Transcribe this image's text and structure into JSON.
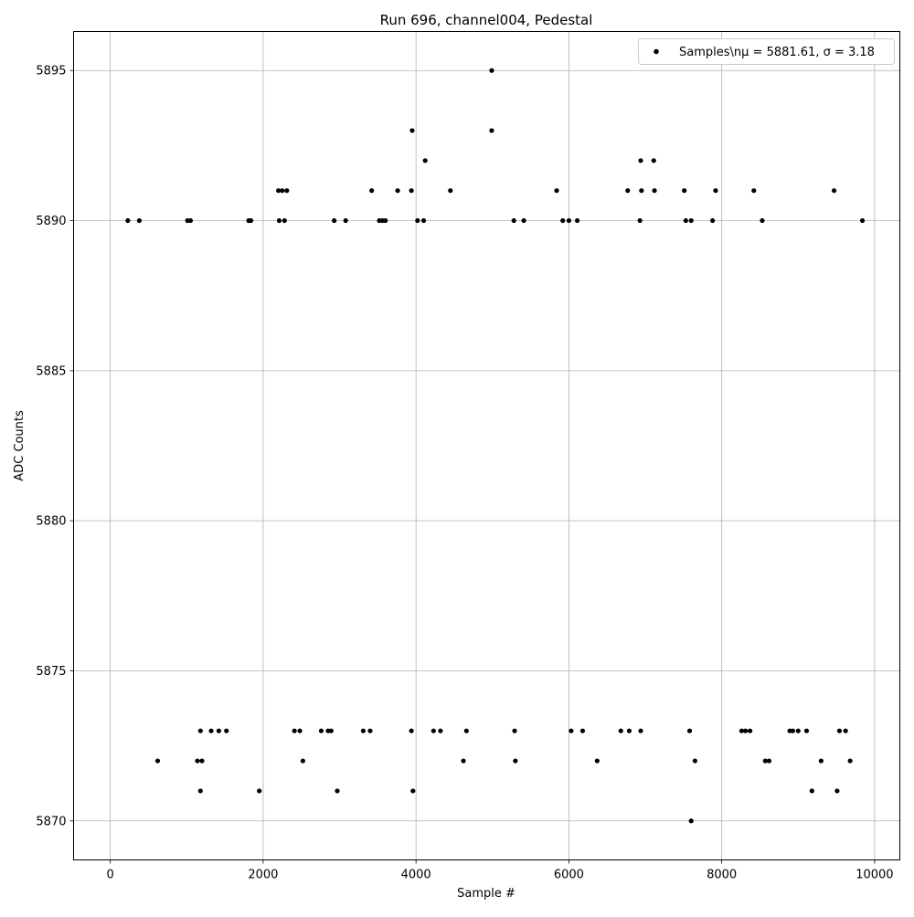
{
  "chart_data": {
    "type": "scatter",
    "title": "Run 696, channel004, Pedestal",
    "xlabel": "Sample #",
    "ylabel": "ADC Counts",
    "xlim": [
      -480,
      10330
    ],
    "ylim": [
      5868.7,
      5896.3
    ],
    "xticks": [
      0,
      2000,
      4000,
      6000,
      8000,
      10000
    ],
    "xtick_labels": [
      "0",
      "2000",
      "4000",
      "6000",
      "8000",
      "10000"
    ],
    "yticks": [
      5870,
      5875,
      5880,
      5885,
      5890,
      5895
    ],
    "ytick_labels": [
      "5870",
      "5875",
      "5880",
      "5885",
      "5890",
      "5895"
    ],
    "grid": true,
    "legend_position": "top-right",
    "legend_label": "Samples\\nμ = 5881.61, σ = 3.18",
    "marker_color": "#000000",
    "sample_range": [
      0,
      9850
    ],
    "series": [
      {
        "name": "Samples\\nμ = 5881.61, σ = 3.18",
        "points": [
          [
            4990,
            5895
          ],
          [
            3950,
            5893
          ],
          [
            4990,
            5893
          ],
          [
            4120,
            5892
          ],
          [
            6940,
            5892
          ],
          [
            7110,
            5892
          ],
          [
            2200,
            5891
          ],
          [
            2250,
            5891
          ],
          [
            2310,
            5891
          ],
          [
            3420,
            5891
          ],
          [
            3760,
            5891
          ],
          [
            3940,
            5891
          ],
          [
            4450,
            5891
          ],
          [
            5840,
            5891
          ],
          [
            6770,
            5891
          ],
          [
            6950,
            5891
          ],
          [
            7120,
            5891
          ],
          [
            7510,
            5891
          ],
          [
            7920,
            5891
          ],
          [
            8420,
            5891
          ],
          [
            9470,
            5891
          ],
          [
            230,
            5890
          ],
          [
            380,
            5890
          ],
          [
            1010,
            5890
          ],
          [
            1050,
            5890
          ],
          [
            1810,
            5890
          ],
          [
            1840,
            5890
          ],
          [
            2210,
            5890
          ],
          [
            2280,
            5890
          ],
          [
            2930,
            5890
          ],
          [
            3080,
            5890
          ],
          [
            3520,
            5890
          ],
          [
            3560,
            5890
          ],
          [
            3600,
            5890
          ],
          [
            4020,
            5890
          ],
          [
            4100,
            5890
          ],
          [
            5280,
            5890
          ],
          [
            5410,
            5890
          ],
          [
            5920,
            5890
          ],
          [
            6000,
            5890
          ],
          [
            6110,
            5890
          ],
          [
            6930,
            5890
          ],
          [
            7530,
            5890
          ],
          [
            7600,
            5890
          ],
          [
            7880,
            5890
          ],
          [
            8530,
            5890
          ],
          [
            9840,
            5890
          ],
          [
            1180,
            5871
          ],
          [
            1950,
            5871
          ],
          [
            2970,
            5871
          ],
          [
            3960,
            5871
          ],
          [
            9180,
            5871
          ],
          [
            9510,
            5871
          ],
          [
            620,
            5872
          ],
          [
            1140,
            5872
          ],
          [
            1200,
            5872
          ],
          [
            2520,
            5872
          ],
          [
            4620,
            5872
          ],
          [
            5300,
            5872
          ],
          [
            6370,
            5872
          ],
          [
            7650,
            5872
          ],
          [
            8570,
            5872
          ],
          [
            8620,
            5872
          ],
          [
            9300,
            5872
          ],
          [
            9680,
            5872
          ],
          [
            7600,
            5870
          ],
          [
            1180,
            5873
          ],
          [
            1320,
            5873
          ],
          [
            1420,
            5873
          ],
          [
            1520,
            5873
          ],
          [
            2410,
            5873
          ],
          [
            2480,
            5873
          ],
          [
            2760,
            5873
          ],
          [
            2850,
            5873
          ],
          [
            2890,
            5873
          ],
          [
            3310,
            5873
          ],
          [
            3400,
            5873
          ],
          [
            3940,
            5873
          ],
          [
            4230,
            5873
          ],
          [
            4320,
            5873
          ],
          [
            4660,
            5873
          ],
          [
            5290,
            5873
          ],
          [
            6030,
            5873
          ],
          [
            6180,
            5873
          ],
          [
            6680,
            5873
          ],
          [
            6790,
            5873
          ],
          [
            6940,
            5873
          ],
          [
            7580,
            5873
          ],
          [
            8260,
            5873
          ],
          [
            8310,
            5873
          ],
          [
            8370,
            5873
          ],
          [
            8890,
            5873
          ],
          [
            8930,
            5873
          ],
          [
            9000,
            5873
          ],
          [
            9110,
            5873
          ],
          [
            9540,
            5873
          ],
          [
            9620,
            5873
          ]
        ]
      }
    ]
  }
}
